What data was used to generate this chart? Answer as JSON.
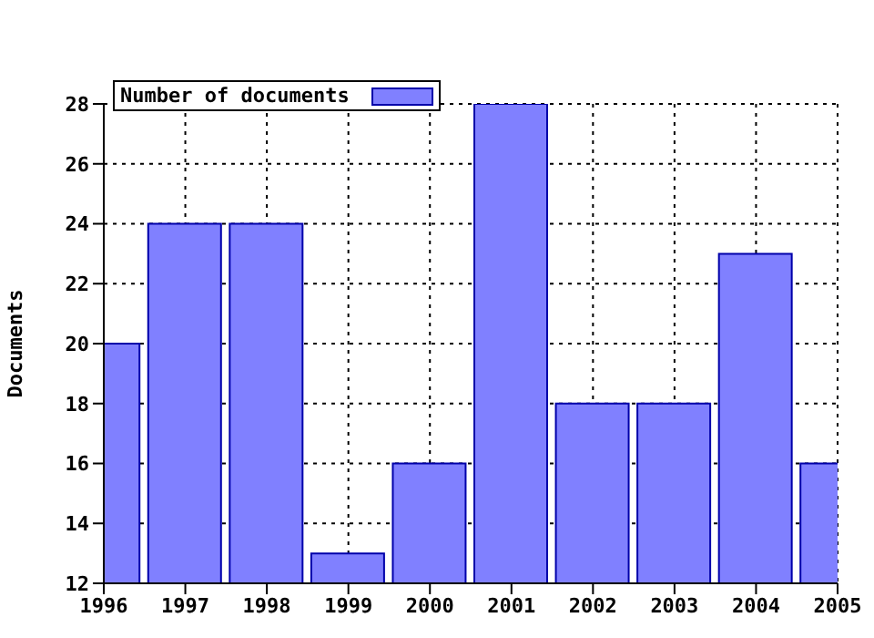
{
  "chart_data": {
    "type": "bar",
    "x": [
      1996,
      1997,
      1998,
      1999,
      2000,
      2001,
      2002,
      2003,
      2004,
      2005
    ],
    "series": [
      {
        "name": "Number of documents",
        "color": "#8080ff",
        "values": [
          20,
          24,
          24,
          13,
          16,
          28,
          18,
          18,
          23,
          16
        ]
      }
    ],
    "xlim": [
      1996,
      2005
    ],
    "xticks": [
      1996,
      1997,
      1998,
      1999,
      2000,
      2001,
      2002,
      2003,
      2004,
      2005
    ],
    "ylim": [
      12,
      28
    ],
    "yticks": [
      12,
      14,
      16,
      18,
      20,
      22,
      24,
      26,
      28
    ],
    "ylabel": "Documents",
    "grid": true,
    "legend": "top left"
  }
}
